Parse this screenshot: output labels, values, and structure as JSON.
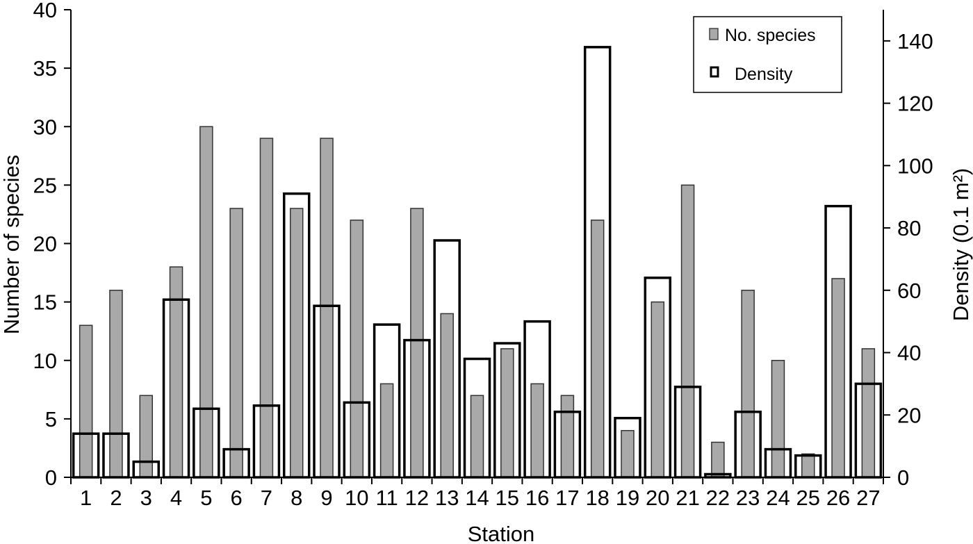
{
  "chart_data": {
    "type": "bar",
    "title": "",
    "xlabel": "Station",
    "ylabel": "Number of species",
    "y2label": "Density (0.1 m²)",
    "categories": [
      "1",
      "2",
      "3",
      "4",
      "5",
      "6",
      "7",
      "8",
      "9",
      "10",
      "11",
      "12",
      "13",
      "14",
      "15",
      "16",
      "17",
      "18",
      "19",
      "20",
      "21",
      "22",
      "23",
      "24",
      "25",
      "26",
      "27"
    ],
    "series": [
      {
        "name": "No. species",
        "axis": "left",
        "style": "filled",
        "color": "#a9a9a9",
        "values": [
          13,
          16,
          7,
          18,
          30,
          23,
          29,
          23,
          29,
          22,
          8,
          23,
          14,
          7,
          11,
          8,
          7,
          22,
          4,
          15,
          25,
          3,
          16,
          10,
          2,
          17,
          11
        ]
      },
      {
        "name": "Density",
        "axis": "right",
        "style": "outline",
        "color": "#000000",
        "values": [
          14,
          14,
          5,
          57,
          22,
          9,
          23,
          91,
          55,
          24,
          49,
          44,
          76,
          38,
          43,
          50,
          21,
          138,
          19,
          64,
          29,
          1,
          21,
          9,
          7,
          87,
          30
        ]
      }
    ],
    "ylim": [
      0,
      40
    ],
    "yticks": [
      0,
      5,
      10,
      15,
      20,
      25,
      30,
      35,
      40
    ],
    "y2lim": [
      0,
      150
    ],
    "y2ticks": [
      0,
      20,
      40,
      60,
      80,
      100,
      120,
      140
    ],
    "grid": false,
    "legend_position": "top-right"
  },
  "legend": {
    "items": [
      {
        "label": "No. species",
        "icon": "filled-gray-square"
      },
      {
        "label": "Density",
        "icon": "outlined-square"
      }
    ]
  }
}
